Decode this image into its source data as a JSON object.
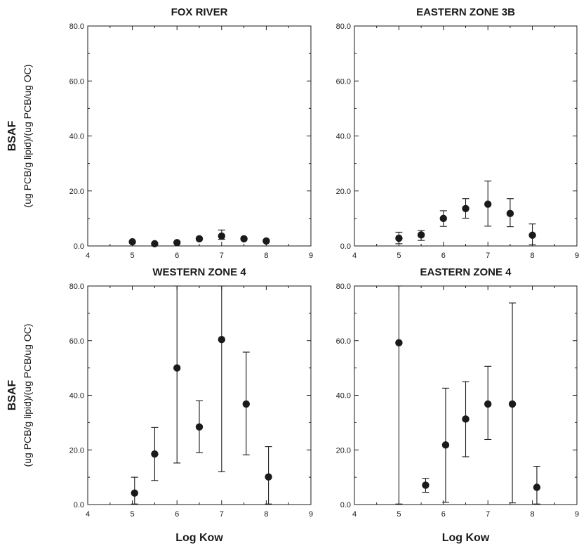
{
  "chart_data": [
    {
      "type": "scatter",
      "title": "FOX RIVER",
      "xlabel": "",
      "ylabel": "BSAF",
      "ylabel_units": "(ug PCB/g lipid)/(ug PCB/ug OC)",
      "xlim": [
        4,
        9
      ],
      "ylim": [
        0,
        80
      ],
      "xticks": [
        "4",
        "5",
        "6",
        "7",
        "8",
        "9"
      ],
      "yticks": [
        "0.0",
        "20.0",
        "40.0",
        "60.0",
        "80.0"
      ],
      "x": [
        5,
        5.5,
        6,
        6.5,
        7,
        7.5,
        8
      ],
      "y": [
        1.5,
        0.8,
        1.2,
        2.6,
        3.6,
        2.6,
        1.8
      ],
      "err_low": [
        1.5,
        0.8,
        1.2,
        2.6,
        2.4,
        2.6,
        1.8
      ],
      "err_high": [
        1.5,
        0.8,
        1.2,
        2.6,
        5.8,
        2.6,
        1.8
      ]
    },
    {
      "type": "scatter",
      "title": "EASTERN ZONE 3B",
      "xlabel": "",
      "ylabel": "",
      "xlim": [
        4,
        9
      ],
      "ylim": [
        0,
        80
      ],
      "xticks": [
        "4",
        "5",
        "6",
        "7",
        "8",
        "9"
      ],
      "yticks": [
        "0.0",
        "20.0",
        "40.0",
        "60.0",
        "80.0"
      ],
      "x": [
        5,
        5.5,
        6,
        6.5,
        7,
        7.5,
        8
      ],
      "y": [
        2.8,
        4.0,
        10.0,
        13.6,
        15.2,
        11.8,
        3.9
      ],
      "err_low": [
        0.8,
        2.0,
        7.1,
        10.1,
        7.2,
        7.0,
        0.4
      ],
      "err_high": [
        5.0,
        5.6,
        12.8,
        17.2,
        23.6,
        17.2,
        8.0
      ]
    },
    {
      "type": "scatter",
      "title": "WESTERN ZONE 4",
      "xlabel": "Log Kow",
      "ylabel": "BSAF",
      "ylabel_units": "(ug PCB/g lipid)/(ug PCB/ug OC)",
      "xlim": [
        4,
        9
      ],
      "ylim": [
        0,
        80
      ],
      "xticks": [
        "4",
        "5",
        "6",
        "7",
        "8",
        "9"
      ],
      "yticks": [
        "0.0",
        "20.0",
        "40.0",
        "60.0",
        "80.0"
      ],
      "x": [
        5.05,
        5.5,
        6,
        6.5,
        7,
        7.55,
        8.05
      ],
      "y": [
        4.2,
        18.5,
        50.0,
        28.4,
        60.4,
        36.8,
        10.1
      ],
      "err_low": [
        0.2,
        8.8,
        15.2,
        19.0,
        12.0,
        18.2,
        0.2
      ],
      "err_high": [
        10.0,
        28.2,
        80.0,
        38.0,
        80.0,
        55.8,
        21.2
      ]
    },
    {
      "type": "scatter",
      "title": "EASTERN ZONE 4",
      "xlabel": "Log Kow",
      "ylabel": "",
      "xlim": [
        4,
        9
      ],
      "ylim": [
        0,
        80
      ],
      "xticks": [
        "4",
        "5",
        "6",
        "7",
        "8",
        "9"
      ],
      "yticks": [
        "0.0",
        "20.0",
        "40.0",
        "60.0",
        "80.0"
      ],
      "x": [
        5,
        5.6,
        6.05,
        6.5,
        7,
        7.55,
        8.1
      ],
      "y": [
        59.2,
        7.1,
        21.8,
        31.3,
        36.8,
        36.8,
        6.3
      ],
      "err_low": [
        0.2,
        4.5,
        0.8,
        17.5,
        23.8,
        0.6,
        0.2
      ],
      "err_high": [
        80.0,
        9.6,
        42.6,
        45.0,
        50.6,
        73.8,
        14.0
      ]
    }
  ]
}
